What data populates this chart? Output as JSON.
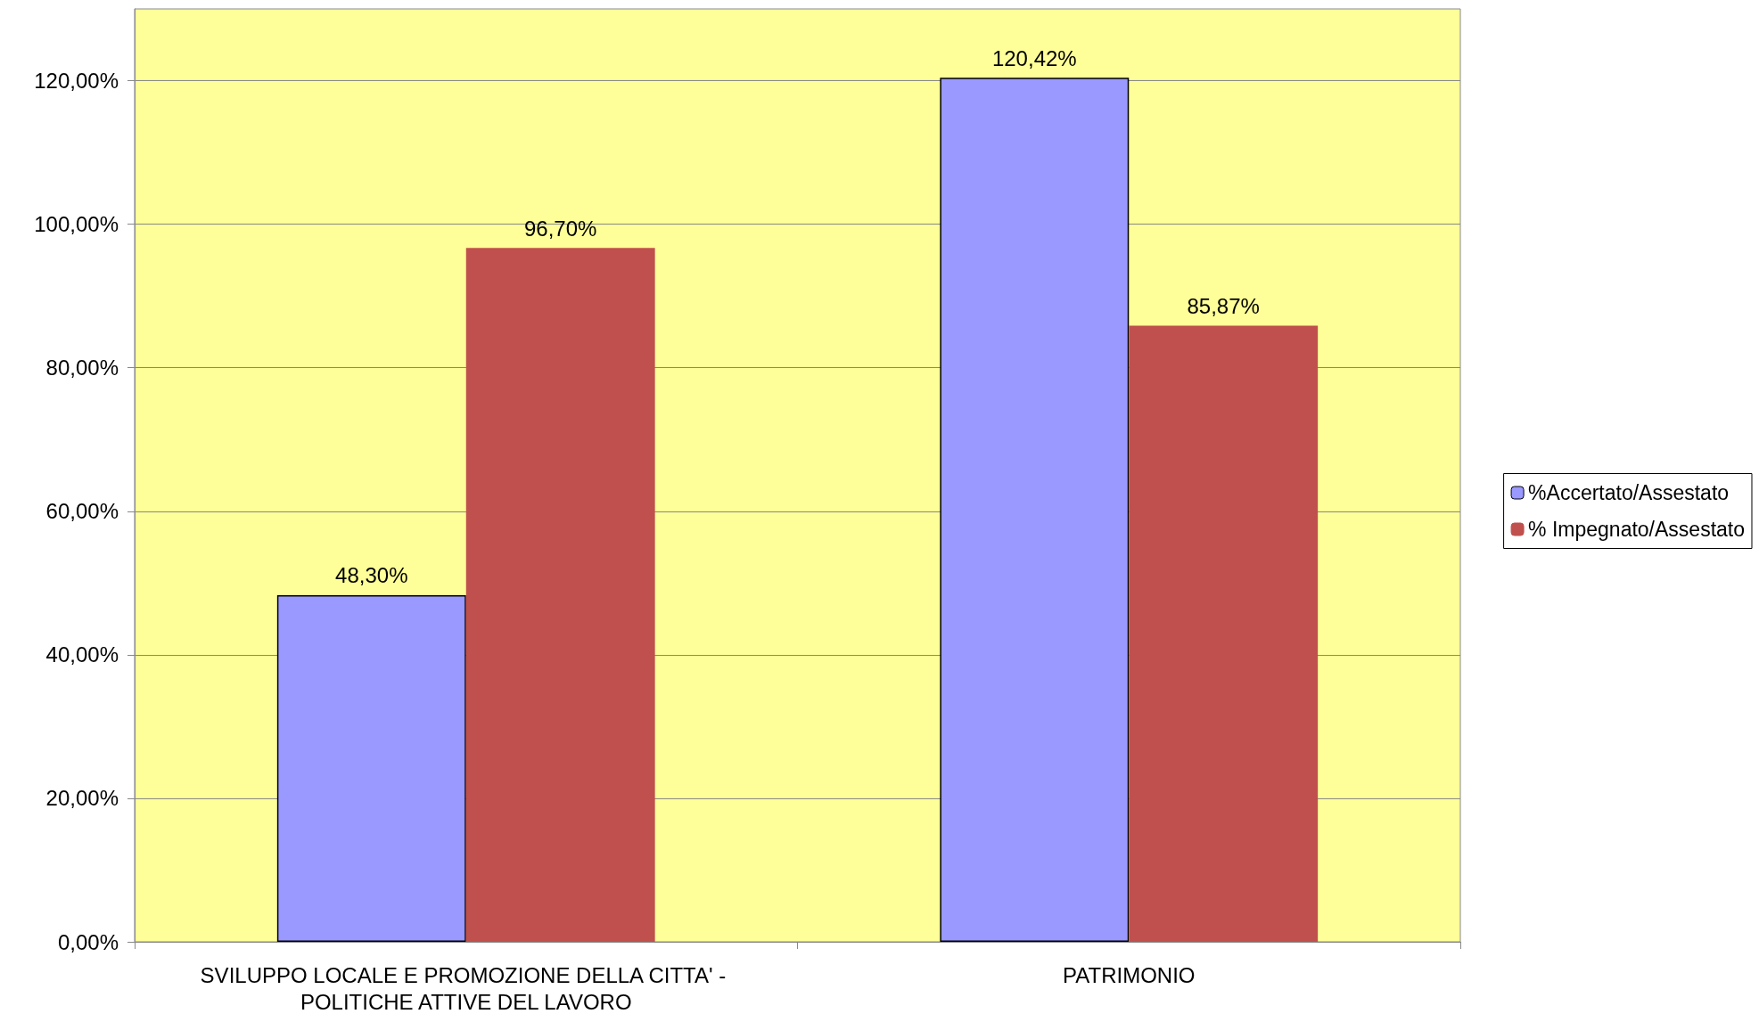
{
  "chart_data": {
    "type": "bar",
    "categories": [
      "SVILUPPO LOCALE E PROMOZIONE DELLA CITTA' - POLITICHE ATTIVE DEL LAVORO",
      "PATRIMONIO"
    ],
    "series": [
      {
        "name": "%Accertato/Assestato",
        "color": "#9999ff",
        "values": [
          48.3,
          120.42
        ],
        "value_labels": [
          "48,30%",
          "120,42%"
        ]
      },
      {
        "name": "% Impegnato/Assestato",
        "color": "#c0504d",
        "values": [
          96.7,
          85.87
        ],
        "value_labels": [
          "96,70%",
          "85,87%"
        ]
      }
    ],
    "ylim": [
      0,
      130
    ],
    "yticks": [
      {
        "value": 0,
        "label": "0,00%"
      },
      {
        "value": 20,
        "label": "20,00%"
      },
      {
        "value": 40,
        "label": "40,00%"
      },
      {
        "value": 60,
        "label": "60,00%"
      },
      {
        "value": 80,
        "label": "80,00%"
      },
      {
        "value": 100,
        "label": "100,00%"
      },
      {
        "value": 120,
        "label": "120,00%"
      }
    ],
    "grid": "y",
    "legend": "right"
  }
}
